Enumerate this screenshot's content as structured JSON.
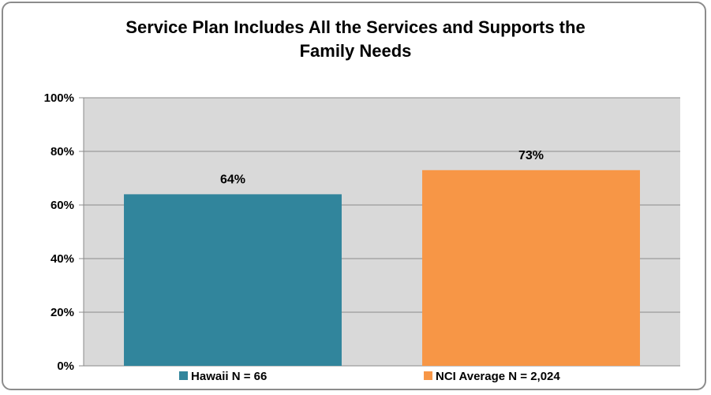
{
  "chart_data": {
    "type": "bar",
    "title_lines": [
      "Service Plan Includes All the Services and Supports the",
      "Family Needs"
    ],
    "categories": [
      "Hawaii N = 66",
      "NCI Average N = 2,024"
    ],
    "values": [
      64,
      73
    ],
    "data_labels": [
      "64%",
      "73%"
    ],
    "colors": [
      "#31859c",
      "#f79646"
    ],
    "ylim": [
      0,
      100
    ],
    "yticks": [
      0,
      20,
      40,
      60,
      80,
      100
    ],
    "ytick_labels": [
      "0%",
      "20%",
      "40%",
      "60%",
      "80%",
      "100%"
    ],
    "grid": true,
    "plot_background": "#d9d9d9",
    "legend_position": "bottom"
  }
}
